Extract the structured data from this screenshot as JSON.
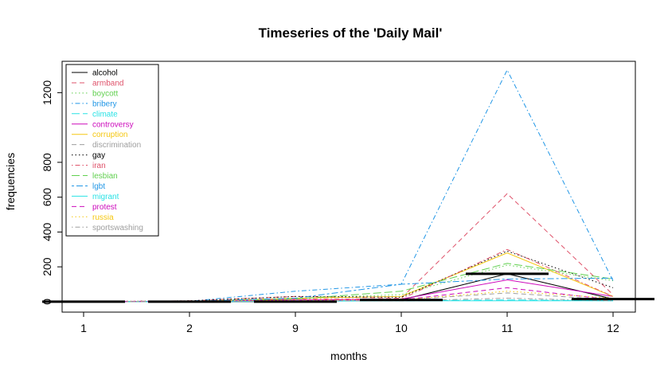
{
  "chart_data": {
    "type": "line",
    "title": "Timeseries of the 'Daily Mail'",
    "xlabel": "months",
    "ylabel": "frequencies",
    "categories": [
      "1",
      "2",
      "9",
      "10",
      "11",
      "12"
    ],
    "yticks": [
      0,
      200,
      400,
      600,
      800,
      1200
    ],
    "ylim": [
      -60,
      1380
    ],
    "legend_position": "top-left",
    "series": [
      {
        "name": "alcohol",
        "color": "#000000",
        "dash": "solid",
        "values": [
          0,
          0,
          0,
          10,
          160,
          15
        ]
      },
      {
        "name": "armband",
        "color": "#DF536B",
        "dash": "dashed",
        "values": [
          0,
          5,
          30,
          20,
          620,
          40
        ]
      },
      {
        "name": "boycott",
        "color": "#61D04F",
        "dash": "dotted",
        "values": [
          0,
          3,
          20,
          40,
          210,
          120
        ]
      },
      {
        "name": "bribery",
        "color": "#2297E6",
        "dash": "dotdash",
        "values": [
          0,
          2,
          60,
          100,
          1330,
          120
        ]
      },
      {
        "name": "climate",
        "color": "#28E2E5",
        "dash": "longdash",
        "values": [
          0,
          0,
          5,
          5,
          10,
          5
        ]
      },
      {
        "name": "controversy",
        "color": "#CD0BBC",
        "dash": "solid",
        "values": [
          0,
          2,
          10,
          15,
          125,
          30
        ]
      },
      {
        "name": "corruption",
        "color": "#F5C710",
        "dash": "solid",
        "values": [
          0,
          2,
          20,
          30,
          280,
          30
        ]
      },
      {
        "name": "discrimination",
        "color": "#9E9E9E",
        "dash": "dashed",
        "values": [
          0,
          0,
          5,
          10,
          50,
          10
        ]
      },
      {
        "name": "gay",
        "color": "#000000",
        "dash": "dotted",
        "values": [
          0,
          5,
          30,
          25,
          290,
          80
        ]
      },
      {
        "name": "iran",
        "color": "#DF536B",
        "dash": "dotdash",
        "values": [
          0,
          3,
          15,
          15,
          300,
          30
        ]
      },
      {
        "name": "lesbian",
        "color": "#61D04F",
        "dash": "longdash",
        "values": [
          0,
          2,
          15,
          60,
          220,
          130
        ]
      },
      {
        "name": "lgbt",
        "color": "#2297E6",
        "dash": "twodash",
        "values": [
          0,
          2,
          20,
          100,
          130,
          135
        ]
      },
      {
        "name": "migrant",
        "color": "#28E2E5",
        "dash": "solid",
        "values": [
          0,
          0,
          2,
          5,
          5,
          5
        ]
      },
      {
        "name": "protest",
        "color": "#CD0BBC",
        "dash": "dashed",
        "values": [
          0,
          2,
          10,
          10,
          80,
          10
        ]
      },
      {
        "name": "russia",
        "color": "#F5C710",
        "dash": "dotted",
        "values": [
          0,
          2,
          10,
          10,
          60,
          20
        ]
      },
      {
        "name": "sportswashing",
        "color": "#9E9E9E",
        "dash": "dotdash",
        "values": [
          0,
          0,
          5,
          5,
          20,
          5
        ]
      }
    ]
  }
}
